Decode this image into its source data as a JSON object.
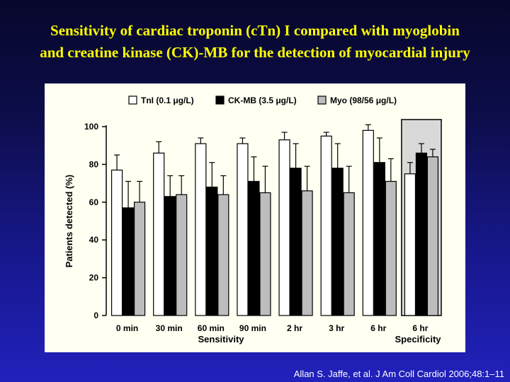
{
  "slide": {
    "title_line1": "Sensitivity of cardiac troponin (cTn) I compared with myoglobin",
    "title_line2": "and creatine kinase (CK)-MB for the detection of myocardial injury",
    "citation": "Allan S. Jaffe, et al. J Am Coll Cardiol 2006;48:1–11"
  },
  "colors": {
    "tni": "#ffffff",
    "ckmb": "#000000",
    "myo": "#bdbdbd",
    "highlight": "#d9d9d9"
  },
  "chart_data": {
    "type": "bar",
    "title": "",
    "ylabel": "Patients detected (%)",
    "ylim": [
      0,
      100
    ],
    "yticks": [
      0,
      20,
      40,
      60,
      80,
      100
    ],
    "grid": false,
    "legend_position": "top",
    "categories": [
      "0 min",
      "30 min",
      "60 min",
      "90 min",
      "2 hr",
      "3 hr",
      "6 hr",
      "6 hr"
    ],
    "group_labels": [
      "Sensitivity",
      "Specificity"
    ],
    "highlighted_category": "6 hr",
    "series": [
      {
        "name": "TnI (0.1 μg/L)",
        "values": [
          77,
          86,
          91,
          91,
          93,
          95,
          98,
          75
        ],
        "error": [
          8,
          6,
          3,
          3,
          4,
          2,
          3,
          6
        ]
      },
      {
        "name": "CK-MB (3.5 μg/L)",
        "values": [
          57,
          63,
          68,
          71,
          78,
          78,
          81,
          86
        ],
        "error": [
          14,
          11,
          13,
          13,
          13,
          13,
          13,
          5
        ]
      },
      {
        "name": "Myo (98/56 μg/L)",
        "values": [
          60,
          64,
          64,
          65,
          66,
          65,
          71,
          84
        ],
        "error": [
          11,
          10,
          10,
          14,
          13,
          14,
          12,
          4
        ]
      }
    ]
  }
}
